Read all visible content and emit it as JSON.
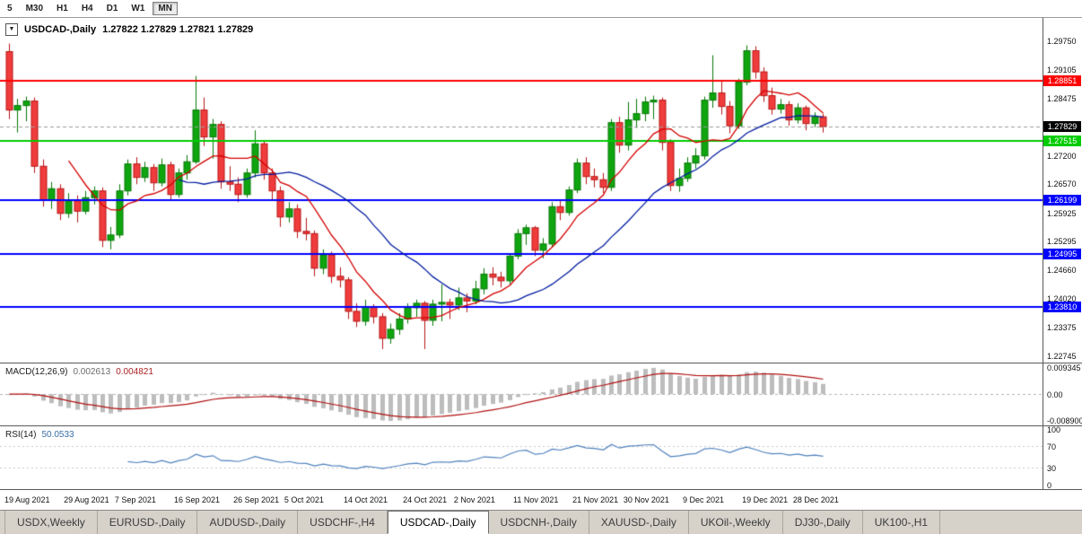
{
  "toolbar": {
    "timeframes": [
      "5",
      "M30",
      "H1",
      "H4",
      "D1",
      "W1",
      "MN"
    ],
    "active": "MN"
  },
  "icons": {
    "collapse": "▼"
  },
  "chart": {
    "symbol": "USDCAD-,Daily",
    "ohlc": "1.27822 1.27829 1.27821 1.27829"
  },
  "price_axis": {
    "scale": {
      "min": 1.2258,
      "max": 1.3025
    },
    "ticks": [
      "1.29750",
      "1.29105",
      "1.28475",
      "1.27200",
      "1.26570",
      "1.25925",
      "1.25295",
      "1.24660",
      "1.24020",
      "1.23375",
      "1.22745"
    ]
  },
  "current_price": {
    "label": "1.27829",
    "value": 1.27829,
    "bg": "#000000"
  },
  "hlines": [
    {
      "value": 1.28851,
      "label": "1.28851",
      "color": "#ff0000",
      "width": 2
    },
    {
      "value": 1.27515,
      "label": "1.27515",
      "color": "#00cc00",
      "width": 2
    },
    {
      "value": 1.26199,
      "label": "1.26199",
      "color": "#0000ff",
      "width": 2
    },
    {
      "value": 1.24995,
      "label": "1.24995",
      "color": "#0000ff",
      "width": 2
    },
    {
      "value": 1.2381,
      "label": "1.23810",
      "color": "#0000ff",
      "width": 2
    }
  ],
  "macd": {
    "title": "MACD(12,26,9)",
    "value_main": "0.002613",
    "value_signal": "0.004821",
    "params": {
      "fast": 12,
      "slow": 26,
      "signal": 9
    },
    "range": {
      "min": -0.0108,
      "max": 0.0106
    },
    "axis": [
      "0.009345",
      "0.00",
      "-0.008900"
    ],
    "colors": {
      "hist": "#bdbdbd",
      "signal": "#b01010"
    }
  },
  "rsi": {
    "title": "RSI(14)",
    "value": "50.0533",
    "period": 14,
    "range": {
      "min": 0,
      "max": 100
    },
    "levels": [
      70,
      30
    ],
    "axis": [
      "100",
      "70",
      "30",
      "0"
    ],
    "color": "#4f81bd"
  },
  "colors": {
    "up_fill": "#0fa50f",
    "up_edge": "#067806",
    "down_fill": "#f03c3c",
    "down_edge": "#b81414",
    "ma_fast": "#d40000",
    "ma_slow": "#001b9e"
  },
  "chart_data": {
    "type": "candlestick",
    "title": "USDCAD-,Daily",
    "moving_averages": [
      {
        "type": "sma",
        "period": 8,
        "color": "#d40000"
      },
      {
        "type": "sma",
        "period": 21,
        "color": "#001b9e"
      }
    ],
    "x_labels": [
      {
        "label": "19 Aug 2021",
        "index": 0
      },
      {
        "label": "29 Aug 2021",
        "index": 7
      },
      {
        "label": "7 Sep 2021",
        "index": 13
      },
      {
        "label": "16 Sep 2021",
        "index": 20
      },
      {
        "label": "26 Sep 2021",
        "index": 27
      },
      {
        "label": "5 Oct 2021",
        "index": 33
      },
      {
        "label": "14 Oct 2021",
        "index": 40
      },
      {
        "label": "24 Oct 2021",
        "index": 47
      },
      {
        "label": "2 Nov 2021",
        "index": 53
      },
      {
        "label": "11 Nov 2021",
        "index": 60
      },
      {
        "label": "21 Nov 2021",
        "index": 67
      },
      {
        "label": "30 Nov 2021",
        "index": 73
      },
      {
        "label": "9 Dec 2021",
        "index": 80
      },
      {
        "label": "19 Dec 2021",
        "index": 87
      },
      {
        "label": "28 Dec 2021",
        "index": 93
      }
    ],
    "candles": [
      [
        1.295,
        1.2968,
        1.28,
        1.282
      ],
      [
        1.282,
        1.2845,
        1.277,
        1.283
      ],
      [
        1.283,
        1.285,
        1.2795,
        1.284
      ],
      [
        1.284,
        1.2848,
        1.268,
        1.2695
      ],
      [
        1.2695,
        1.271,
        1.2605,
        1.262
      ],
      [
        1.262,
        1.266,
        1.26,
        1.2645
      ],
      [
        1.2645,
        1.2655,
        1.2575,
        1.259
      ],
      [
        1.259,
        1.2635,
        1.258,
        1.2618
      ],
      [
        1.2618,
        1.263,
        1.257,
        1.2595
      ],
      [
        1.2595,
        1.264,
        1.2588,
        1.2625
      ],
      [
        1.2625,
        1.265,
        1.261,
        1.264
      ],
      [
        1.264,
        1.2648,
        1.2515,
        1.253
      ],
      [
        1.253,
        1.256,
        1.251,
        1.2542
      ],
      [
        1.2542,
        1.2655,
        1.2535,
        1.264
      ],
      [
        1.264,
        1.271,
        1.263,
        1.27
      ],
      [
        1.27,
        1.2715,
        1.2655,
        1.267
      ],
      [
        1.267,
        1.2705,
        1.266,
        1.2692
      ],
      [
        1.2692,
        1.27,
        1.264,
        1.2658
      ],
      [
        1.2658,
        1.2712,
        1.265,
        1.2698
      ],
      [
        1.2698,
        1.2705,
        1.262,
        1.2632
      ],
      [
        1.2632,
        1.269,
        1.2625,
        1.268
      ],
      [
        1.268,
        1.272,
        1.2665,
        1.2705
      ],
      [
        1.2705,
        1.2896,
        1.27,
        1.282
      ],
      [
        1.282,
        1.2848,
        1.274,
        1.276
      ],
      [
        1.276,
        1.28,
        1.2712,
        1.2788
      ],
      [
        1.2788,
        1.2795,
        1.2645,
        1.266
      ],
      [
        1.266,
        1.2695,
        1.264,
        1.2655
      ],
      [
        1.2655,
        1.267,
        1.2615,
        1.2632
      ],
      [
        1.2632,
        1.269,
        1.2625,
        1.268
      ],
      [
        1.268,
        1.2775,
        1.267,
        1.2745
      ],
      [
        1.2745,
        1.275,
        1.2665,
        1.268
      ],
      [
        1.268,
        1.269,
        1.262,
        1.264
      ],
      [
        1.264,
        1.265,
        1.256,
        1.2582
      ],
      [
        1.2582,
        1.2615,
        1.257,
        1.26
      ],
      [
        1.26,
        1.261,
        1.2535,
        1.255
      ],
      [
        1.255,
        1.258,
        1.253,
        1.2545
      ],
      [
        1.2545,
        1.2552,
        1.245,
        1.2468
      ],
      [
        1.2468,
        1.251,
        1.2455,
        1.2498
      ],
      [
        1.2498,
        1.2505,
        1.2435,
        1.245
      ],
      [
        1.245,
        1.247,
        1.2425,
        1.2442
      ],
      [
        1.2442,
        1.2448,
        1.2355,
        1.2372
      ],
      [
        1.2372,
        1.239,
        1.2337,
        1.235
      ],
      [
        1.235,
        1.2398,
        1.234,
        1.2382
      ],
      [
        1.2382,
        1.2388,
        1.2345,
        1.236
      ],
      [
        1.236,
        1.2368,
        1.2288,
        1.2312
      ],
      [
        1.2312,
        1.2345,
        1.23,
        1.2332
      ],
      [
        1.2332,
        1.2368,
        1.232,
        1.2355
      ],
      [
        1.2355,
        1.239,
        1.2345,
        1.238
      ],
      [
        1.238,
        1.2398,
        1.236,
        1.239
      ],
      [
        1.239,
        1.2395,
        1.2288,
        1.2352
      ],
      [
        1.2352,
        1.2398,
        1.234,
        1.2388
      ],
      [
        1.2388,
        1.2432,
        1.235,
        1.2392
      ],
      [
        1.2392,
        1.24,
        1.2355,
        1.2386
      ],
      [
        1.2386,
        1.2425,
        1.2375,
        1.2402
      ],
      [
        1.2402,
        1.2412,
        1.237,
        1.2395
      ],
      [
        1.2395,
        1.244,
        1.2388,
        1.2422
      ],
      [
        1.2422,
        1.2468,
        1.241,
        1.2455
      ],
      [
        1.2455,
        1.247,
        1.243,
        1.2448
      ],
      [
        1.2448,
        1.246,
        1.2425,
        1.244
      ],
      [
        1.244,
        1.25,
        1.2432,
        1.2495
      ],
      [
        1.2495,
        1.2555,
        1.2488,
        1.2545
      ],
      [
        1.2545,
        1.2565,
        1.252,
        1.2558
      ],
      [
        1.2558,
        1.2562,
        1.2495,
        1.2508
      ],
      [
        1.2508,
        1.2535,
        1.249,
        1.2522
      ],
      [
        1.2522,
        1.2615,
        1.2515,
        1.2605
      ],
      [
        1.2605,
        1.262,
        1.2575,
        1.2592
      ],
      [
        1.2592,
        1.265,
        1.2585,
        1.2642
      ],
      [
        1.2642,
        1.2712,
        1.2635,
        1.2702
      ],
      [
        1.2702,
        1.2715,
        1.2655,
        1.2672
      ],
      [
        1.2672,
        1.269,
        1.2648,
        1.2665
      ],
      [
        1.2665,
        1.268,
        1.2635,
        1.2648
      ],
      [
        1.2648,
        1.28,
        1.264,
        1.2792
      ],
      [
        1.2792,
        1.2805,
        1.2725,
        1.2742
      ],
      [
        1.2742,
        1.2838,
        1.273,
        1.2798
      ],
      [
        1.2798,
        1.2845,
        1.278,
        1.2812
      ],
      [
        1.2812,
        1.285,
        1.2795,
        1.2838
      ],
      [
        1.2838,
        1.2852,
        1.28,
        1.2842
      ],
      [
        1.2842,
        1.2848,
        1.273,
        1.2748
      ],
      [
        1.2748,
        1.2755,
        1.264,
        1.2652
      ],
      [
        1.2652,
        1.269,
        1.2638,
        1.2668
      ],
      [
        1.2668,
        1.2715,
        1.266,
        1.2702
      ],
      [
        1.2702,
        1.2735,
        1.269,
        1.2718
      ],
      [
        1.2718,
        1.285,
        1.271,
        1.2842
      ],
      [
        1.2842,
        1.2942,
        1.2825,
        1.2858
      ],
      [
        1.2858,
        1.2885,
        1.281,
        1.2828
      ],
      [
        1.2828,
        1.284,
        1.2768,
        1.2785
      ],
      [
        1.2785,
        1.289,
        1.2778,
        1.2882
      ],
      [
        1.2882,
        1.2964,
        1.2875,
        1.2952
      ],
      [
        1.2952,
        1.2962,
        1.289,
        1.2905
      ],
      [
        1.2905,
        1.2915,
        1.2838,
        1.2852
      ],
      [
        1.2852,
        1.287,
        1.281,
        1.2822
      ],
      [
        1.2822,
        1.2845,
        1.2812,
        1.2832
      ],
      [
        1.2832,
        1.284,
        1.2785,
        1.2798
      ],
      [
        1.2798,
        1.2835,
        1.279,
        1.2825
      ],
      [
        1.2825,
        1.283,
        1.2775,
        1.279
      ],
      [
        1.279,
        1.2815,
        1.2782,
        1.2805
      ],
      [
        1.2805,
        1.2812,
        1.277,
        1.27829
      ]
    ]
  },
  "tabs": {
    "active_index": 4,
    "items": [
      {
        "label": "USDX,Weekly"
      },
      {
        "label": "EURUSD-,Daily"
      },
      {
        "label": "AUDUSD-,Daily"
      },
      {
        "label": "USDCHF-,H4"
      },
      {
        "label": "USDCAD-,Daily"
      },
      {
        "label": "USDCNH-,Daily"
      },
      {
        "label": "XAUUSD-,Daily"
      },
      {
        "label": "UKOil-,Weekly"
      },
      {
        "label": "DJ30-,Daily"
      },
      {
        "label": "UK100-,H1"
      }
    ]
  }
}
